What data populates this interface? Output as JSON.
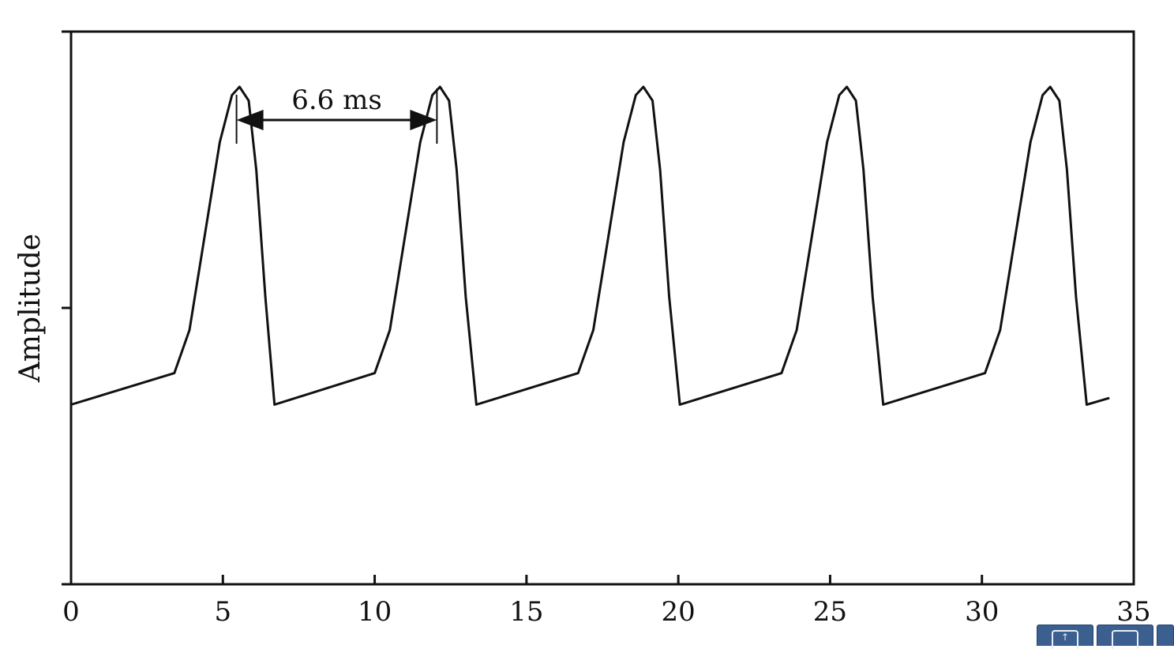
{
  "chart_data": {
    "type": "line",
    "title": "",
    "xlabel": "",
    "ylabel": "Amplitude",
    "xlim": [
      0,
      35
    ],
    "ylim": [
      0,
      1
    ],
    "x_ticks": [
      0,
      5,
      10,
      15,
      20,
      25,
      30,
      35
    ],
    "x_tick_labels": [
      "0",
      "5",
      "10",
      "15",
      "20",
      "25",
      "30",
      "35"
    ],
    "y_ticks": [
      0,
      0.5,
      1
    ],
    "grid": false,
    "series": [
      {
        "points": [
          [
            0.0,
            0.325
          ],
          [
            3.4,
            0.382
          ],
          [
            3.9,
            0.46
          ],
          [
            4.4,
            0.63
          ],
          [
            4.9,
            0.8
          ],
          [
            5.3,
            0.885
          ],
          [
            5.55,
            0.9
          ],
          [
            5.85,
            0.875
          ],
          [
            6.1,
            0.75
          ],
          [
            6.4,
            0.52
          ],
          [
            6.7,
            0.325
          ],
          [
            10.0,
            0.382
          ],
          [
            10.5,
            0.46
          ],
          [
            11.0,
            0.63
          ],
          [
            11.5,
            0.8
          ],
          [
            11.9,
            0.885
          ],
          [
            12.15,
            0.9
          ],
          [
            12.45,
            0.875
          ],
          [
            12.7,
            0.75
          ],
          [
            13.0,
            0.52
          ],
          [
            13.35,
            0.325
          ],
          [
            16.7,
            0.382
          ],
          [
            17.2,
            0.46
          ],
          [
            17.7,
            0.63
          ],
          [
            18.2,
            0.8
          ],
          [
            18.6,
            0.885
          ],
          [
            18.85,
            0.9
          ],
          [
            19.15,
            0.875
          ],
          [
            19.4,
            0.75
          ],
          [
            19.7,
            0.52
          ],
          [
            20.05,
            0.325
          ],
          [
            23.4,
            0.382
          ],
          [
            23.9,
            0.46
          ],
          [
            24.4,
            0.63
          ],
          [
            24.9,
            0.8
          ],
          [
            25.3,
            0.885
          ],
          [
            25.55,
            0.9
          ],
          [
            25.85,
            0.875
          ],
          [
            26.1,
            0.75
          ],
          [
            26.4,
            0.52
          ],
          [
            26.75,
            0.325
          ],
          [
            30.1,
            0.382
          ],
          [
            30.6,
            0.46
          ],
          [
            31.1,
            0.63
          ],
          [
            31.6,
            0.8
          ],
          [
            32.0,
            0.885
          ],
          [
            32.25,
            0.9
          ],
          [
            32.55,
            0.875
          ],
          [
            32.8,
            0.75
          ],
          [
            33.1,
            0.52
          ],
          [
            33.45,
            0.325
          ],
          [
            34.2,
            0.337
          ]
        ]
      }
    ],
    "annotation": {
      "text": "6.6 ms",
      "x_start": 5.45,
      "x_end": 12.05,
      "y": 0.84
    }
  },
  "colors": {
    "line": "#111111",
    "axes": "#111111",
    "toolbar": "#3b5f8f"
  },
  "toolbar": {
    "icons": [
      "export-icon",
      "window-icon"
    ]
  }
}
